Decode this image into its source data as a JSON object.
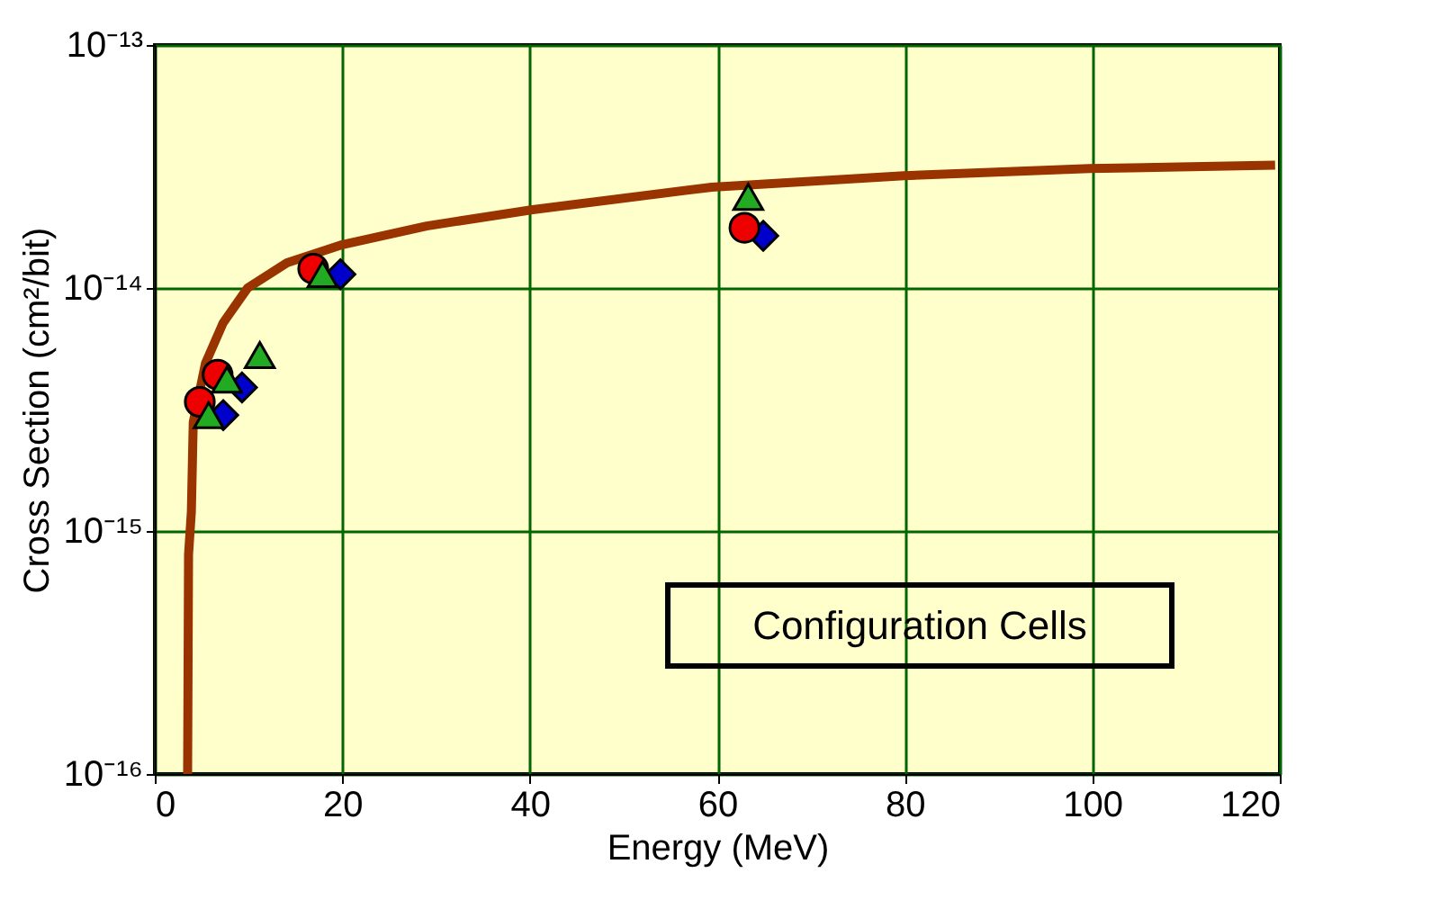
{
  "chart_data": {
    "type": "scatter",
    "xlabel": "Energy (MeV)",
    "ylabel": "Cross Section (cm²/bit)",
    "log": "y",
    "grid": true,
    "legend": false,
    "xlim": [
      0,
      120
    ],
    "xticks": [
      0,
      20,
      40,
      60,
      80,
      100,
      120
    ],
    "ylim": [
      1e-16,
      1e-13
    ],
    "yticks": [
      {
        "value": 1e-16,
        "label": "10⁻¹⁶"
      },
      {
        "value": 1e-15,
        "label": "10⁻¹⁵"
      },
      {
        "value": 1e-14,
        "label": "10⁻¹⁴"
      },
      {
        "value": 1e-13,
        "label": "10⁻¹³"
      }
    ],
    "annotations": [
      "Configuration Cells"
    ],
    "series": [
      {
        "type": "line",
        "color": "#993300",
        "marker": "none",
        "x": [
          3.5,
          3.6,
          3.9,
          4.1,
          5.4,
          7.3,
          9.9,
          14.1,
          19.8,
          29,
          40.3,
          59.4,
          79.9,
          99.7,
          119.5
        ],
        "values": [
          1e-16,
          8e-16,
          1.2e-15,
          2.8e-15,
          4.9e-15,
          7.2e-15,
          1e-14,
          1.27e-14,
          1.5e-14,
          1.8e-14,
          2.1e-14,
          2.6e-14,
          2.9e-14,
          3.1e-14,
          3.2e-14
        ]
      },
      {
        "color": "#0000cc",
        "marker": "diamond",
        "x": [
          7.3,
          9.3,
          11.5,
          19.8,
          64.9
        ],
        "values": [
          3e-15,
          3.9e-15,
          null,
          1.14e-14,
          1.64e-14
        ]
      },
      {
        "color": "#ee0000",
        "marker": "circle",
        "x": [
          4.8,
          6.7,
          16.9,
          62.9
        ],
        "values": [
          3.4e-15,
          4.4e-15,
          1.2e-14,
          1.77e-14
        ]
      },
      {
        "color": "#22aa22",
        "marker": "triangle",
        "x": [
          5.75,
          7.7,
          11.2,
          17.9,
          63.3
        ],
        "values": [
          3e-15,
          4.2e-15,
          5.3e-15,
          1.14e-14,
          2.37e-14
        ]
      }
    ]
  }
}
